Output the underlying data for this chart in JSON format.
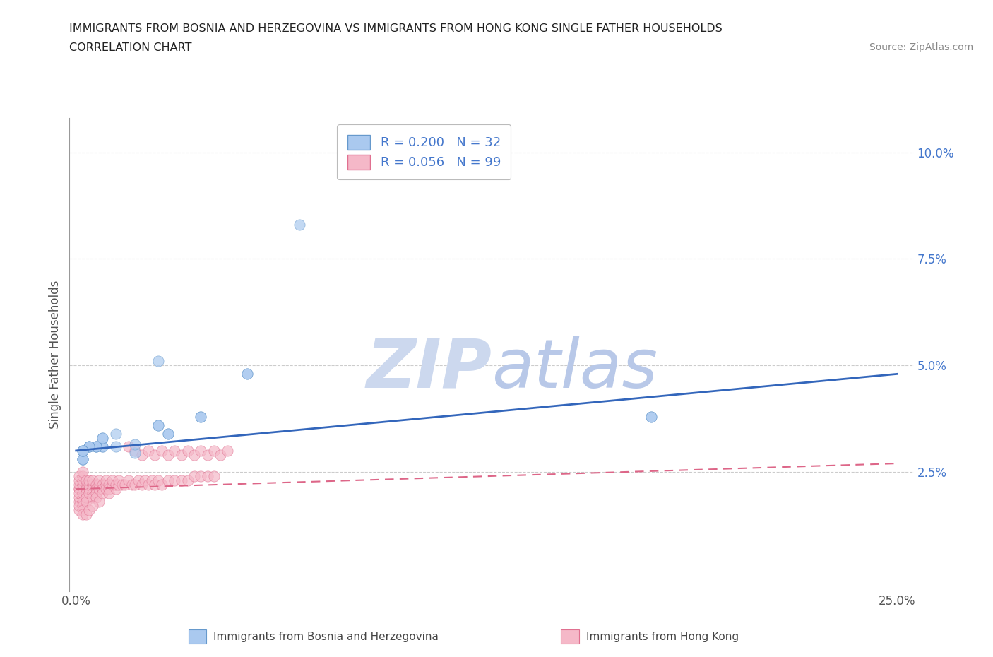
{
  "title_line1": "IMMIGRANTS FROM BOSNIA AND HERZEGOVINA VS IMMIGRANTS FROM HONG KONG SINGLE FATHER HOUSEHOLDS",
  "title_line2": "CORRELATION CHART",
  "source_text": "Source: ZipAtlas.com",
  "ylabel": "Single Father Households",
  "xlim": [
    -0.002,
    0.255
  ],
  "ylim": [
    -0.003,
    0.108
  ],
  "xticks": [
    0.0,
    0.25
  ],
  "xticklabels": [
    "0.0%",
    "25.0%"
  ],
  "yticks": [
    0.025,
    0.05,
    0.075,
    0.1
  ],
  "yticklabels": [
    "2.5%",
    "5.0%",
    "7.5%",
    "10.0%"
  ],
  "bosnia_color": "#aac9ef",
  "bosnia_edge_color": "#6699cc",
  "hk_color": "#f5b8c8",
  "hk_edge_color": "#e07090",
  "bosnia_R": 0.2,
  "bosnia_N": 32,
  "hk_R": 0.056,
  "hk_N": 99,
  "legend_color": "#4477cc",
  "watermark_zip_color": "#ccd8ee",
  "watermark_atlas_color": "#b8c8e8",
  "bosnia_line_color": "#3366bb",
  "hk_line_color": "#dd6688",
  "grid_color": "#cccccc",
  "background_color": "#ffffff",
  "bosnia_scatter_x": [
    0.018,
    0.018,
    0.012,
    0.012,
    0.008,
    0.008,
    0.008,
    0.008,
    0.006,
    0.006,
    0.006,
    0.004,
    0.004,
    0.004,
    0.002,
    0.002,
    0.002,
    0.002,
    0.002,
    0.002,
    0.025,
    0.025,
    0.025,
    0.028,
    0.028,
    0.038,
    0.038,
    0.052,
    0.052,
    0.068,
    0.175,
    0.175
  ],
  "bosnia_scatter_y": [
    0.0295,
    0.0315,
    0.031,
    0.034,
    0.031,
    0.031,
    0.033,
    0.033,
    0.031,
    0.031,
    0.031,
    0.031,
    0.031,
    0.031,
    0.028,
    0.028,
    0.028,
    0.03,
    0.03,
    0.03,
    0.051,
    0.036,
    0.036,
    0.034,
    0.034,
    0.038,
    0.038,
    0.048,
    0.048,
    0.083,
    0.038,
    0.038
  ],
  "hk_scatter_x": [
    0.001,
    0.001,
    0.001,
    0.001,
    0.001,
    0.001,
    0.001,
    0.001,
    0.001,
    0.001,
    0.002,
    0.002,
    0.002,
    0.002,
    0.002,
    0.002,
    0.002,
    0.002,
    0.002,
    0.002,
    0.003,
    0.003,
    0.003,
    0.003,
    0.003,
    0.003,
    0.004,
    0.004,
    0.004,
    0.004,
    0.005,
    0.005,
    0.005,
    0.005,
    0.005,
    0.006,
    0.006,
    0.006,
    0.006,
    0.007,
    0.007,
    0.007,
    0.007,
    0.008,
    0.008,
    0.008,
    0.009,
    0.009,
    0.009,
    0.01,
    0.01,
    0.01,
    0.011,
    0.011,
    0.012,
    0.012,
    0.013,
    0.013,
    0.014,
    0.015,
    0.016,
    0.017,
    0.018,
    0.019,
    0.02,
    0.021,
    0.022,
    0.023,
    0.024,
    0.025,
    0.026,
    0.028,
    0.03,
    0.032,
    0.034,
    0.036,
    0.038,
    0.04,
    0.042,
    0.016,
    0.018,
    0.02,
    0.022,
    0.024,
    0.026,
    0.028,
    0.03,
    0.032,
    0.034,
    0.036,
    0.038,
    0.04,
    0.042,
    0.044,
    0.046,
    0.002,
    0.003,
    0.004,
    0.005
  ],
  "hk_scatter_y": [
    0.021,
    0.021,
    0.022,
    0.023,
    0.018,
    0.019,
    0.016,
    0.017,
    0.02,
    0.024,
    0.021,
    0.022,
    0.023,
    0.019,
    0.02,
    0.018,
    0.017,
    0.016,
    0.024,
    0.025,
    0.022,
    0.021,
    0.023,
    0.02,
    0.019,
    0.018,
    0.022,
    0.021,
    0.02,
    0.023,
    0.022,
    0.021,
    0.02,
    0.019,
    0.023,
    0.022,
    0.021,
    0.02,
    0.019,
    0.022,
    0.021,
    0.023,
    0.018,
    0.022,
    0.021,
    0.02,
    0.022,
    0.021,
    0.023,
    0.022,
    0.021,
    0.02,
    0.022,
    0.023,
    0.021,
    0.022,
    0.022,
    0.023,
    0.022,
    0.022,
    0.023,
    0.022,
    0.022,
    0.023,
    0.022,
    0.023,
    0.022,
    0.023,
    0.022,
    0.023,
    0.022,
    0.023,
    0.023,
    0.023,
    0.023,
    0.024,
    0.024,
    0.024,
    0.024,
    0.031,
    0.03,
    0.029,
    0.03,
    0.029,
    0.03,
    0.029,
    0.03,
    0.029,
    0.03,
    0.029,
    0.03,
    0.029,
    0.03,
    0.029,
    0.03,
    0.015,
    0.015,
    0.016,
    0.017
  ]
}
